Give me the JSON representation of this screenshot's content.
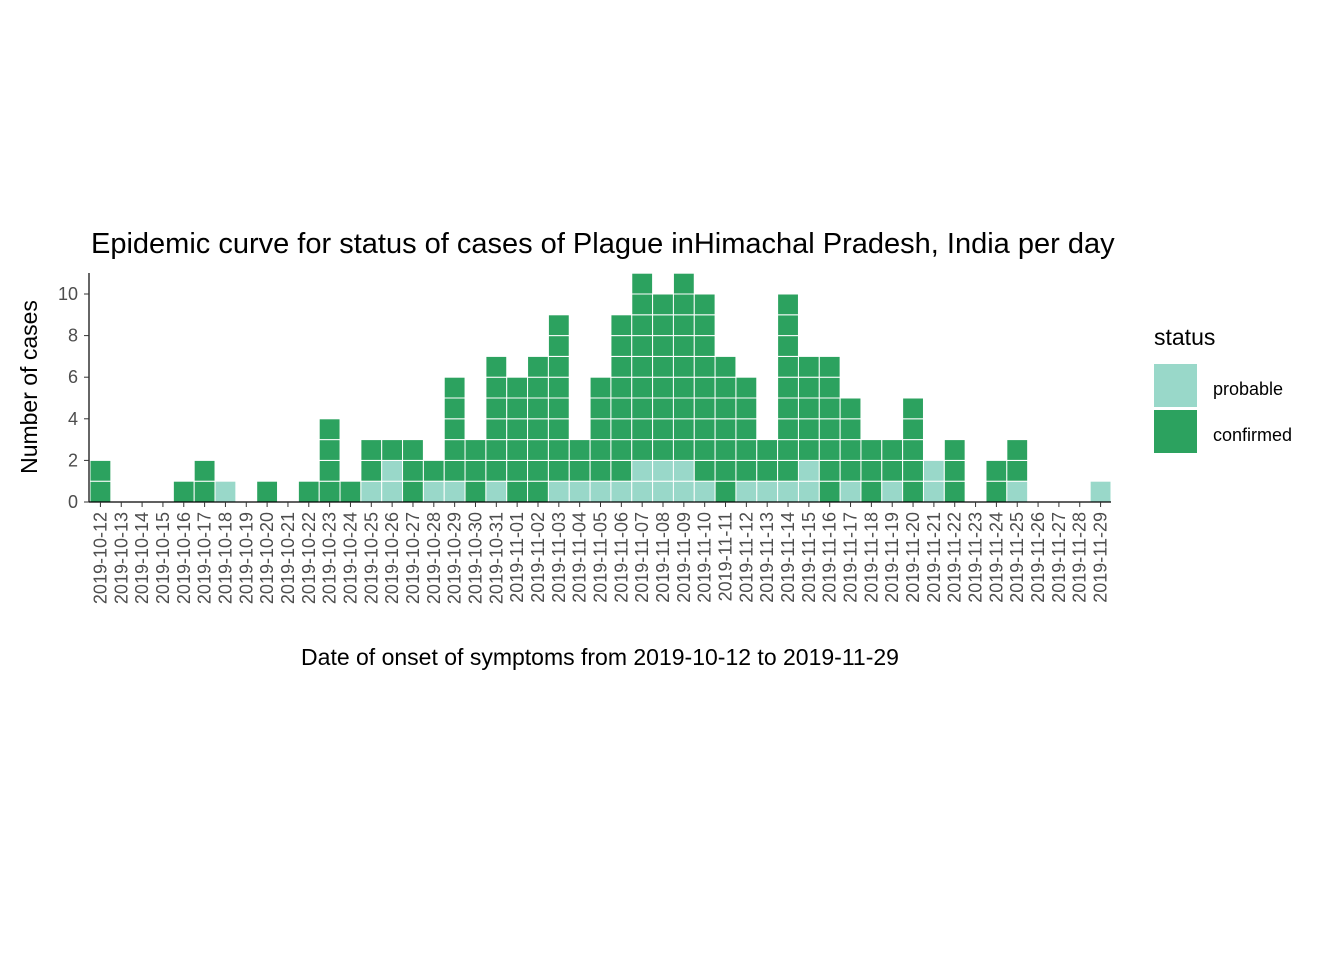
{
  "chart_data": {
    "type": "bar",
    "stacked": true,
    "title": "Epidemic curve for status of cases of Plague inHimachal Pradesh, India per day",
    "xlabel": "Date of onset of symptoms from 2019-10-12 to 2019-11-29",
    "ylabel": "Number of cases",
    "ylim": [
      0,
      11
    ],
    "yticks": [
      0,
      2,
      4,
      6,
      8,
      10
    ],
    "grid": false,
    "categories": [
      "2019-10-12",
      "2019-10-13",
      "2019-10-14",
      "2019-10-15",
      "2019-10-16",
      "2019-10-17",
      "2019-10-18",
      "2019-10-19",
      "2019-10-20",
      "2019-10-21",
      "2019-10-22",
      "2019-10-23",
      "2019-10-24",
      "2019-10-25",
      "2019-10-26",
      "2019-10-27",
      "2019-10-28",
      "2019-10-29",
      "2019-10-30",
      "2019-10-31",
      "2019-11-01",
      "2019-11-02",
      "2019-11-03",
      "2019-11-04",
      "2019-11-05",
      "2019-11-06",
      "2019-11-07",
      "2019-11-08",
      "2019-11-09",
      "2019-11-10",
      "2019-11-11",
      "2019-11-12",
      "2019-11-13",
      "2019-11-14",
      "2019-11-15",
      "2019-11-16",
      "2019-11-17",
      "2019-11-18",
      "2019-11-19",
      "2019-11-20",
      "2019-11-21",
      "2019-11-22",
      "2019-11-23",
      "2019-11-24",
      "2019-11-25",
      "2019-11-26",
      "2019-11-27",
      "2019-11-28",
      "2019-11-29"
    ],
    "series": [
      {
        "name": "probable",
        "color": "#99d8c9",
        "values": [
          0,
          0,
          0,
          0,
          0,
          0,
          1,
          0,
          0,
          0,
          0,
          0,
          0,
          1,
          2,
          0,
          1,
          1,
          0,
          1,
          0,
          0,
          1,
          1,
          1,
          1,
          2,
          2,
          2,
          1,
          0,
          1,
          1,
          1,
          2,
          0,
          1,
          0,
          1,
          0,
          2,
          0,
          0,
          0,
          1,
          0,
          0,
          0,
          1
        ]
      },
      {
        "name": "confirmed",
        "color": "#2ca25f",
        "values": [
          2,
          0,
          0,
          0,
          1,
          2,
          0,
          0,
          1,
          0,
          1,
          4,
          1,
          2,
          1,
          3,
          1,
          5,
          3,
          6,
          6,
          7,
          8,
          2,
          5,
          8,
          9,
          8,
          9,
          9,
          7,
          5,
          2,
          9,
          5,
          7,
          4,
          3,
          2,
          5,
          0,
          3,
          0,
          2,
          2,
          0,
          0,
          0,
          0
        ]
      }
    ],
    "legend": {
      "title": "status",
      "position": "right",
      "entries": [
        "probable",
        "confirmed"
      ]
    }
  }
}
